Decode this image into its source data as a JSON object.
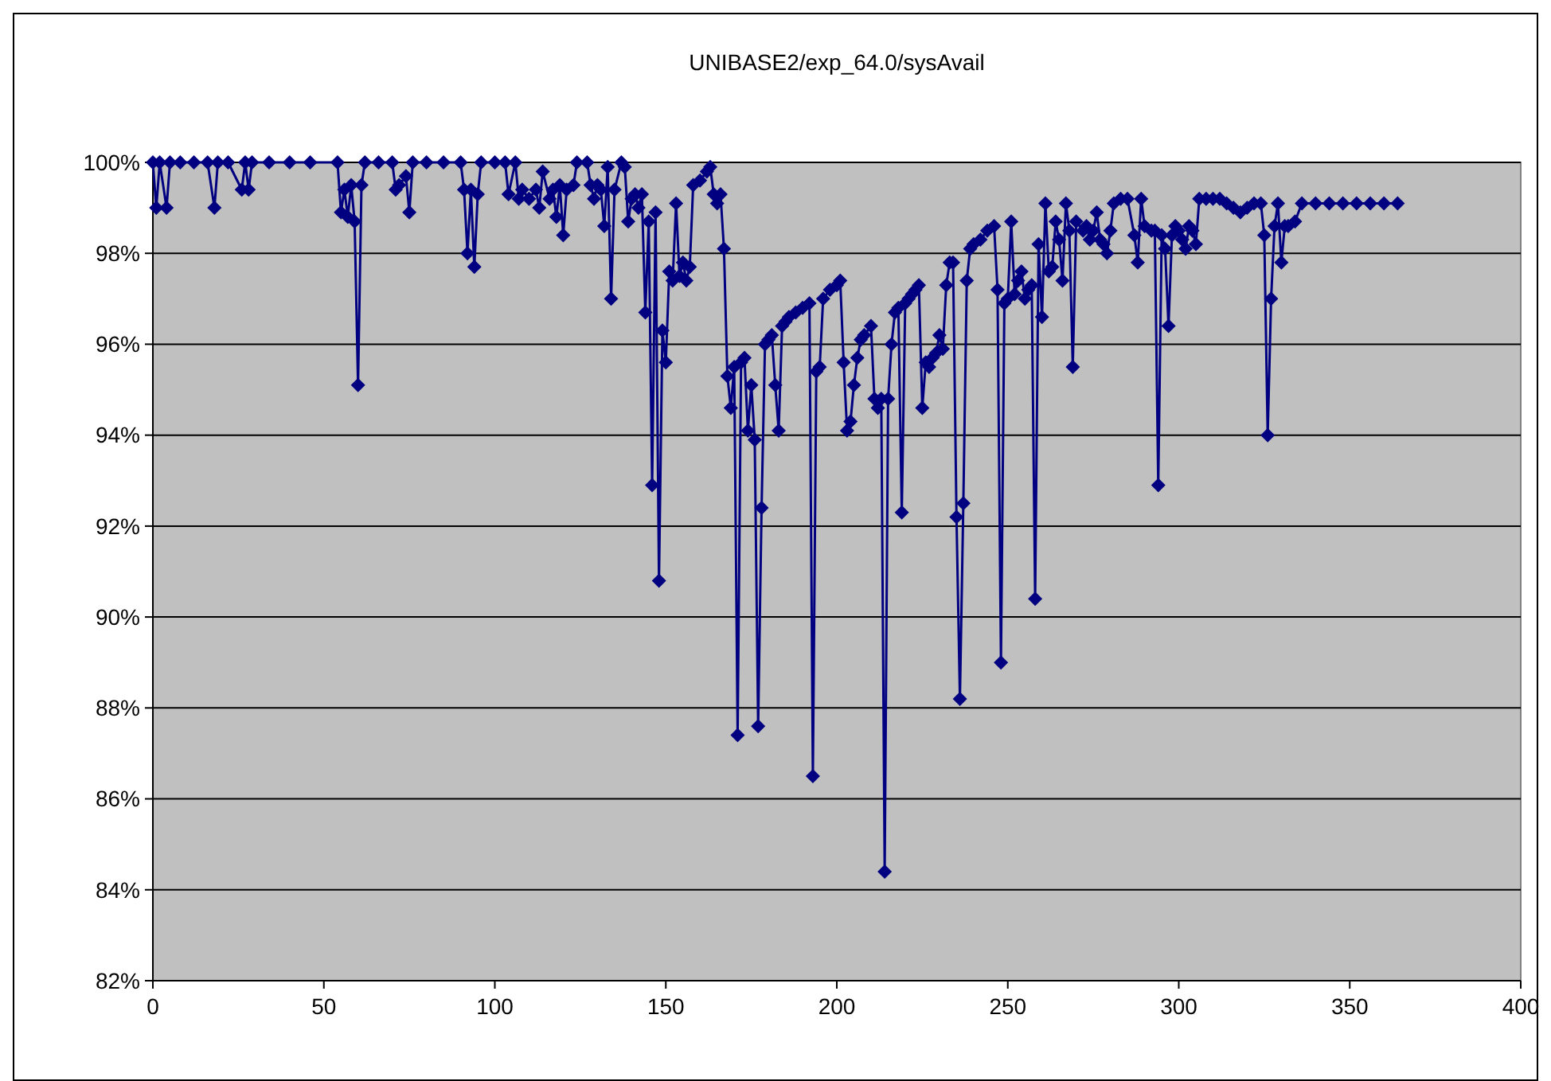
{
  "chart_data": {
    "type": "line",
    "title": "UNIBASE2/exp_64.0/sysAvail",
    "marker": "diamond",
    "grid": "y",
    "xlim": [
      0,
      400
    ],
    "xticks": [
      0,
      50,
      100,
      150,
      200,
      250,
      300,
      350,
      400
    ],
    "ylim": [
      82,
      100
    ],
    "yticks": [
      {
        "value": 82,
        "label": "82%"
      },
      {
        "value": 84,
        "label": "84%"
      },
      {
        "value": 86,
        "label": "86%"
      },
      {
        "value": 88,
        "label": "88%"
      },
      {
        "value": 90,
        "label": "90%"
      },
      {
        "value": 92,
        "label": "92%"
      },
      {
        "value": 94,
        "label": "94%"
      },
      {
        "value": 96,
        "label": "96%"
      },
      {
        "value": 98,
        "label": "98%"
      },
      {
        "value": 100,
        "label": "100%"
      }
    ],
    "series": [
      {
        "color": "#000080",
        "x": [
          0,
          1,
          2,
          4,
          5,
          8,
          12,
          16,
          18,
          19,
          22,
          26,
          27,
          28,
          29,
          34,
          40,
          46,
          54,
          55,
          56,
          57,
          58,
          59,
          60,
          61,
          62,
          66,
          70,
          71,
          72,
          74,
          75,
          76,
          80,
          85,
          90,
          91,
          92,
          93,
          94,
          95,
          96,
          100,
          103,
          104,
          106,
          107,
          108,
          110,
          112,
          113,
          114,
          116,
          117,
          118,
          119,
          120,
          121,
          123,
          124,
          127,
          128,
          129,
          130,
          131,
          132,
          133,
          134,
          135,
          137,
          138,
          139,
          140,
          141,
          142,
          143,
          144,
          145,
          146,
          147,
          148,
          149,
          150,
          151,
          152,
          153,
          154,
          155,
          156,
          157,
          158,
          160,
          162,
          163,
          164,
          165,
          166,
          167,
          168,
          169,
          170,
          171,
          172,
          173,
          174,
          175,
          176,
          177,
          178,
          179,
          180,
          181,
          182,
          183,
          184,
          185,
          186,
          188,
          190,
          192,
          193,
          194,
          195,
          196,
          198,
          200,
          201,
          202,
          203,
          204,
          205,
          206,
          207,
          208,
          210,
          211,
          212,
          213,
          214,
          215,
          216,
          217,
          218,
          219,
          220,
          221,
          222,
          223,
          224,
          225,
          226,
          227,
          228,
          229,
          230,
          231,
          232,
          233,
          234,
          235,
          236,
          237,
          238,
          239,
          240,
          242,
          244,
          246,
          247,
          248,
          249,
          250,
          251,
          252,
          253,
          254,
          255,
          256,
          257,
          258,
          259,
          260,
          261,
          262,
          263,
          264,
          265,
          266,
          267,
          268,
          269,
          270,
          272,
          273,
          274,
          275,
          276,
          277,
          278,
          279,
          280,
          281,
          283,
          285,
          287,
          288,
          289,
          290,
          292,
          293,
          294,
          295,
          296,
          297,
          298,
          299,
          300,
          301,
          302,
          303,
          304,
          305,
          306,
          308,
          310,
          312,
          314,
          316,
          318,
          320,
          322,
          324,
          325,
          326,
          327,
          328,
          329,
          330,
          331,
          332,
          334,
          336,
          340,
          344,
          348,
          352,
          356,
          360,
          364
        ],
        "values": [
          100,
          99.0,
          100,
          99.0,
          100,
          100,
          100,
          100,
          99.0,
          100,
          100,
          99.4,
          100,
          99.4,
          100,
          100,
          100,
          100,
          100,
          98.9,
          99.4,
          98.8,
          99.5,
          98.7,
          95.1,
          99.5,
          100,
          100,
          100,
          99.4,
          99.5,
          99.7,
          98.9,
          100,
          100,
          100,
          100,
          99.4,
          98.0,
          99.4,
          97.7,
          99.3,
          100,
          100,
          100,
          99.3,
          100,
          99.2,
          99.4,
          99.2,
          99.4,
          99.0,
          99.8,
          99.2,
          99.4,
          98.8,
          99.5,
          98.4,
          99.4,
          99.5,
          100,
          100,
          99.5,
          99.2,
          99.5,
          99.4,
          98.6,
          99.9,
          97.0,
          99.4,
          100,
          99.9,
          98.7,
          99.2,
          99.3,
          99.0,
          99.3,
          96.7,
          98.7,
          92.9,
          98.9,
          90.8,
          96.3,
          95.6,
          97.6,
          97.4,
          99.1,
          97.5,
          97.8,
          97.4,
          97.7,
          99.5,
          99.6,
          99.8,
          99.9,
          99.3,
          99.1,
          99.3,
          98.1,
          95.3,
          94.6,
          95.5,
          87.4,
          95.6,
          95.7,
          94.1,
          95.1,
          93.9,
          87.6,
          92.4,
          96.0,
          96.1,
          96.2,
          95.1,
          94.1,
          96.4,
          96.5,
          96.6,
          96.7,
          96.8,
          96.9,
          86.5,
          95.4,
          95.5,
          97.0,
          97.2,
          97.3,
          97.4,
          95.6,
          94.1,
          94.3,
          95.1,
          95.7,
          96.1,
          96.2,
          96.4,
          94.8,
          94.6,
          94.8,
          84.4,
          94.8,
          96.0,
          96.7,
          96.8,
          92.3,
          96.9,
          97.0,
          97.1,
          97.2,
          97.3,
          94.6,
          95.6,
          95.5,
          95.7,
          95.8,
          96.2,
          95.9,
          97.3,
          97.8,
          97.8,
          92.2,
          88.2,
          92.5,
          97.4,
          98.1,
          98.2,
          98.3,
          98.5,
          98.6,
          97.2,
          89.0,
          96.9,
          97.0,
          98.7,
          97.1,
          97.4,
          97.6,
          97.0,
          97.2,
          97.3,
          90.4,
          98.2,
          96.6,
          99.1,
          97.6,
          97.7,
          98.7,
          98.3,
          97.4,
          99.1,
          98.5,
          95.5,
          98.7,
          98.5,
          98.6,
          98.3,
          98.5,
          98.9,
          98.3,
          98.2,
          98.0,
          98.5,
          99.1,
          99.2,
          99.2,
          98.4,
          97.8,
          99.2,
          98.6,
          98.5,
          98.5,
          92.9,
          98.4,
          98.1,
          96.4,
          98.4,
          98.6,
          98.5,
          98.3,
          98.1,
          98.6,
          98.5,
          98.2,
          99.2,
          99.2,
          99.2,
          99.2,
          99.1,
          99.0,
          98.9,
          99.0,
          99.1,
          99.1,
          98.4,
          94.0,
          97.0,
          98.6,
          99.1,
          97.8,
          98.6,
          98.6,
          98.7,
          99.1,
          99.1,
          99.1,
          99.1,
          99.1,
          99.1,
          99.1,
          99.1
        ]
      }
    ]
  }
}
